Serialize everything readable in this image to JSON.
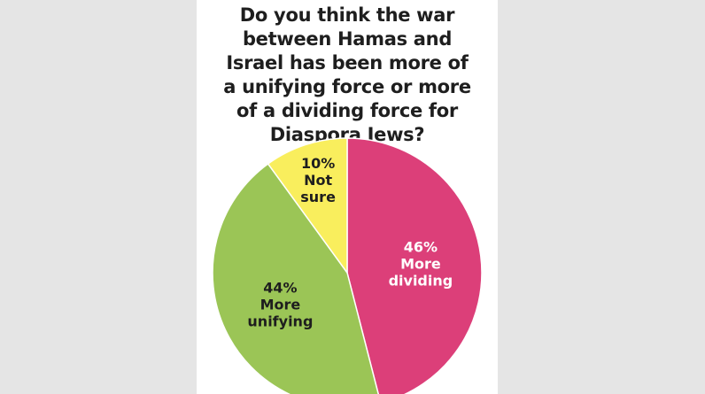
{
  "chart_data": {
    "type": "pie",
    "title_lines": [
      "Do you think the war",
      "between Hamas and",
      "Israel has been more of",
      "a unifying force or more",
      "of a dividing force for",
      "Diaspora Jews?"
    ],
    "slices": [
      {
        "label": "More dividing",
        "label_lines": [
          "More",
          "dividing"
        ],
        "value": 46,
        "value_label": "46%",
        "color": "#dc3f79",
        "text_color": "#ffffff"
      },
      {
        "label": "More unifying",
        "label_lines": [
          "More",
          "unifying"
        ],
        "value": 44,
        "value_label": "44%",
        "color": "#9bc556",
        "text_color": "#1e1e1e"
      },
      {
        "label": "Not sure",
        "label_lines": [
          "Not",
          "sure"
        ],
        "value": 10,
        "value_label": "10%",
        "color": "#f9ee5d",
        "text_color": "#1e1e1e"
      }
    ],
    "start": "12 o'clock",
    "direction": "clockwise",
    "legend": "none"
  }
}
